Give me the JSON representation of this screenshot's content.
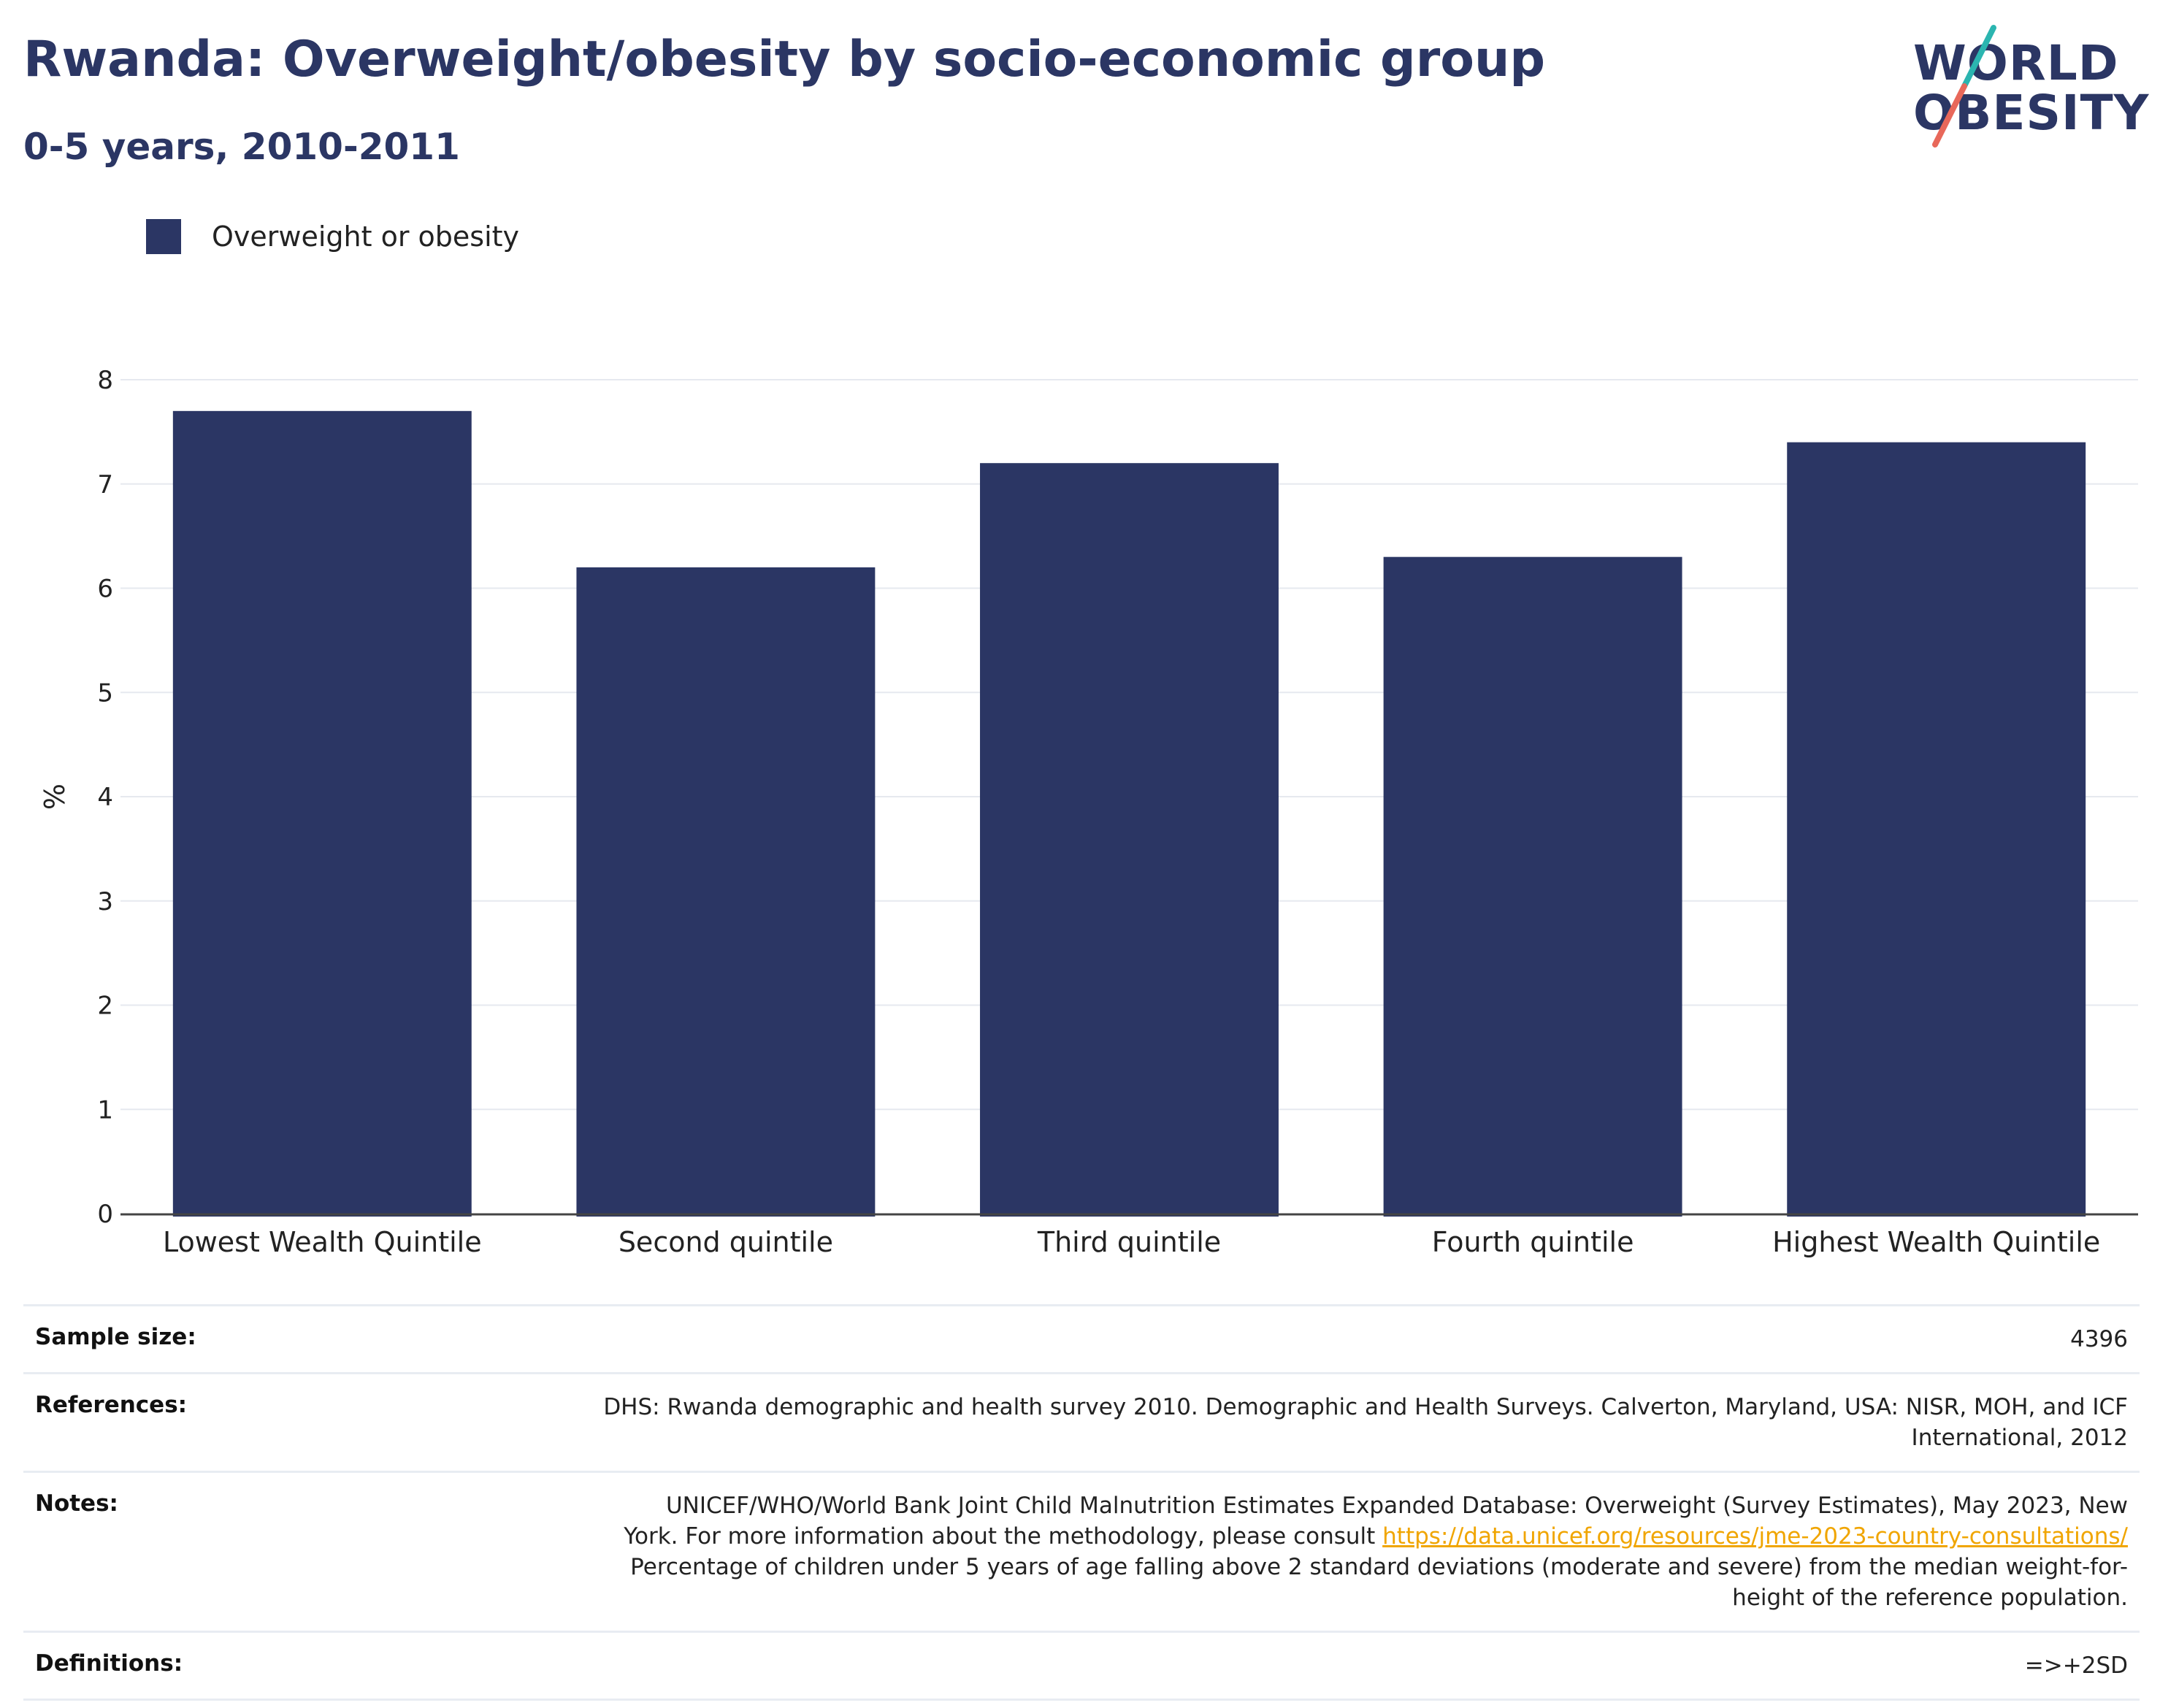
{
  "title": "Rwanda: Overweight/obesity by socio-economic group",
  "subtitle": "0-5 years, 2010-2011",
  "logo": {
    "line1": "WORLD",
    "line2": "OBESITY"
  },
  "legend": {
    "label": "Overweight or obesity",
    "color": "#2b3664"
  },
  "chart_data": {
    "type": "bar",
    "categories": [
      "Lowest Wealth Quintile",
      "Second quintile",
      "Third quintile",
      "Fourth quintile",
      "Highest Wealth Quintile"
    ],
    "series": [
      {
        "name": "Overweight or obesity",
        "values": [
          7.7,
          6.2,
          7.2,
          6.3,
          7.4
        ],
        "color": "#2b3664"
      }
    ],
    "ylabel": "%",
    "ylim": [
      0,
      8
    ],
    "yticks": [
      "0",
      "1",
      "2",
      "3",
      "4",
      "5",
      "6",
      "7",
      "8"
    ],
    "grid": true,
    "legend_position": "top-left"
  },
  "info": {
    "sample_size": {
      "label": "Sample size:",
      "value": "4396"
    },
    "references": {
      "label": "References:",
      "line1": "DHS: Rwanda demographic and health survey 2010. Demographic and Health Surveys. Calverton, Maryland, USA: NISR, MOH, and ICF",
      "line2": "International, 2012"
    },
    "notes": {
      "label": "Notes:",
      "line1": "UNICEF/WHO/World Bank Joint Child Malnutrition Estimates Expanded Database: Overweight (Survey Estimates), May 2023, New",
      "line2_text": "York. For more information about the methodology, please consult ",
      "link": "https://data.unicef.org/resources/jme-2023-country-consultations/",
      "line3": "Percentage of children under 5 years of age falling above 2 standard deviations (moderate and severe) from the median weight-for-",
      "line4": "height of the reference population."
    },
    "definitions": {
      "label": "Definitions:",
      "value": "=>+2SD"
    }
  }
}
